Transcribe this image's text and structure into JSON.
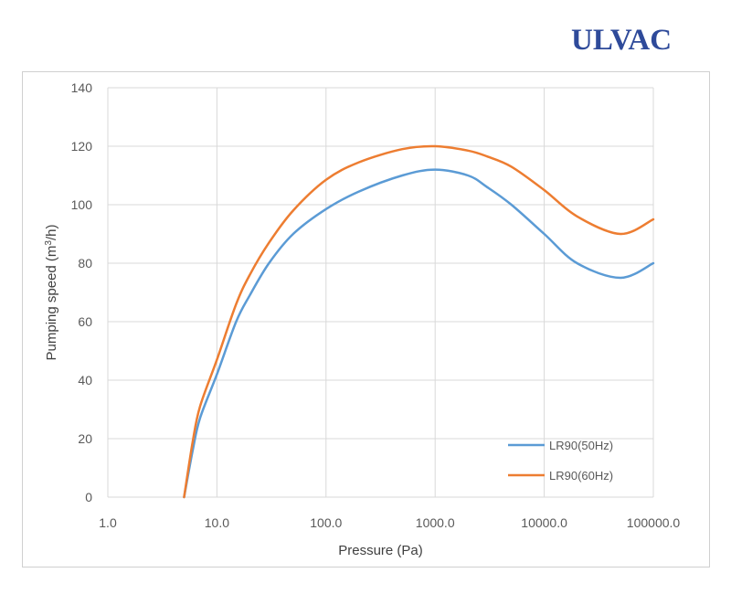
{
  "logo": {
    "text": "ULVAC",
    "color": "#2e4a9a"
  },
  "chart_data": {
    "type": "line",
    "x_scale": "log",
    "xlabel": "Pressure (Pa)",
    "ylabel_parts": {
      "before": "Pumping speed (m",
      "sup": "3",
      "after": "/h)"
    },
    "xlim": [
      1,
      100000
    ],
    "ylim": [
      0,
      140
    ],
    "x_ticks": [
      1,
      10,
      100,
      1000,
      10000,
      100000
    ],
    "x_tick_labels": [
      "1.0",
      "10.0",
      "100.0",
      "1000.0",
      "10000.0",
      "100000.0"
    ],
    "y_ticks": [
      0,
      20,
      40,
      60,
      80,
      100,
      120,
      140
    ],
    "y_tick_labels": [
      "0",
      "20",
      "40",
      "60",
      "80",
      "100",
      "120",
      "140"
    ],
    "grid": true,
    "legend_position": "bottom-right",
    "series": [
      {
        "name": "LR90(50Hz)",
        "color": "#5b9bd5",
        "points": [
          [
            5,
            0
          ],
          [
            6,
            16
          ],
          [
            7,
            27
          ],
          [
            10,
            42
          ],
          [
            15,
            60
          ],
          [
            20,
            69
          ],
          [
            30,
            80
          ],
          [
            50,
            90
          ],
          [
            100,
            98.5
          ],
          [
            200,
            104.5
          ],
          [
            500,
            110
          ],
          [
            1000,
            112
          ],
          [
            2000,
            110
          ],
          [
            3000,
            106
          ],
          [
            5000,
            100
          ],
          [
            10000,
            90
          ],
          [
            20000,
            80
          ],
          [
            50000,
            75
          ],
          [
            100000,
            80
          ]
        ]
      },
      {
        "name": "LR90(60Hz)",
        "color": "#ed7d31",
        "points": [
          [
            5,
            0
          ],
          [
            6,
            19
          ],
          [
            7,
            31
          ],
          [
            10,
            47
          ],
          [
            15,
            66
          ],
          [
            20,
            76
          ],
          [
            30,
            87
          ],
          [
            50,
            98
          ],
          [
            100,
            108.5
          ],
          [
            200,
            114.5
          ],
          [
            500,
            119
          ],
          [
            1000,
            120
          ],
          [
            2000,
            118.5
          ],
          [
            3000,
            116.5
          ],
          [
            5000,
            113
          ],
          [
            10000,
            105
          ],
          [
            20000,
            96
          ],
          [
            50000,
            90
          ],
          [
            100000,
            95
          ]
        ]
      }
    ]
  }
}
